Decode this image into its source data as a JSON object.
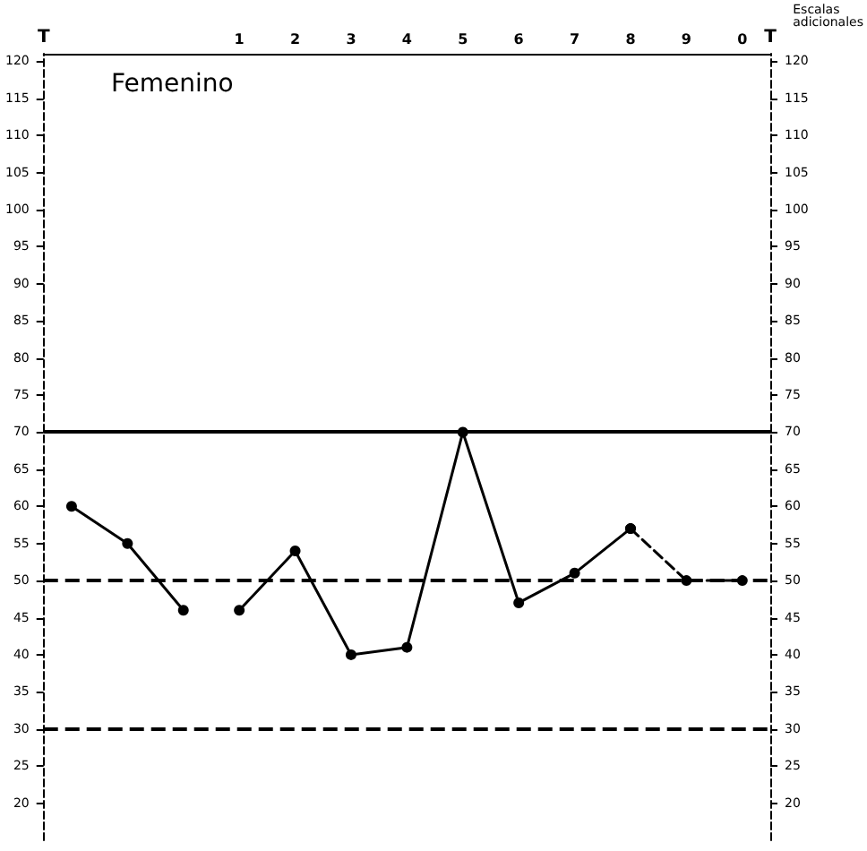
{
  "chart_data": {
    "type": "line",
    "annotations": [
      "Femenino",
      "Escalas adicionales"
    ],
    "ylabel": "T",
    "y2label": "T",
    "categories": [
      null,
      null,
      null,
      "1",
      "2",
      "3",
      "4",
      "5",
      "6",
      "7",
      "8",
      "9",
      "0"
    ],
    "series": [
      {
        "color": "#000000",
        "line_style": "solid",
        "values": [
          60,
          55,
          46,
          null,
          null,
          null,
          null,
          null,
          null,
          null,
          null,
          null,
          null
        ]
      },
      {
        "color": "#000000",
        "line_style": "solid",
        "values": [
          null,
          null,
          null,
          46,
          54,
          40,
          41,
          70,
          47,
          51,
          57,
          null,
          null
        ]
      },
      {
        "color": "#000000",
        "line_style": "dashed",
        "values": [
          null,
          null,
          null,
          null,
          null,
          null,
          null,
          null,
          null,
          null,
          57,
          50,
          50
        ]
      }
    ],
    "marker": "circle",
    "grid": false,
    "ylim": [
      15,
      121
    ],
    "yticks": [
      20,
      25,
      30,
      35,
      40,
      45,
      50,
      55,
      60,
      65,
      70,
      75,
      80,
      85,
      90,
      95,
      100,
      105,
      110,
      115,
      120
    ],
    "y2lim": [
      15,
      121
    ],
    "y2ticks": [
      20,
      25,
      30,
      35,
      40,
      45,
      50,
      55,
      60,
      65,
      70,
      75,
      80,
      85,
      90,
      95,
      100,
      105,
      110,
      115,
      120
    ],
    "ref_lines": [
      {
        "axis": "y",
        "value": 70,
        "line_style": "solid"
      },
      {
        "axis": "y",
        "value": 50,
        "line_style": "dashed"
      },
      {
        "axis": "y",
        "value": 30,
        "line_style": "dashed"
      }
    ]
  }
}
